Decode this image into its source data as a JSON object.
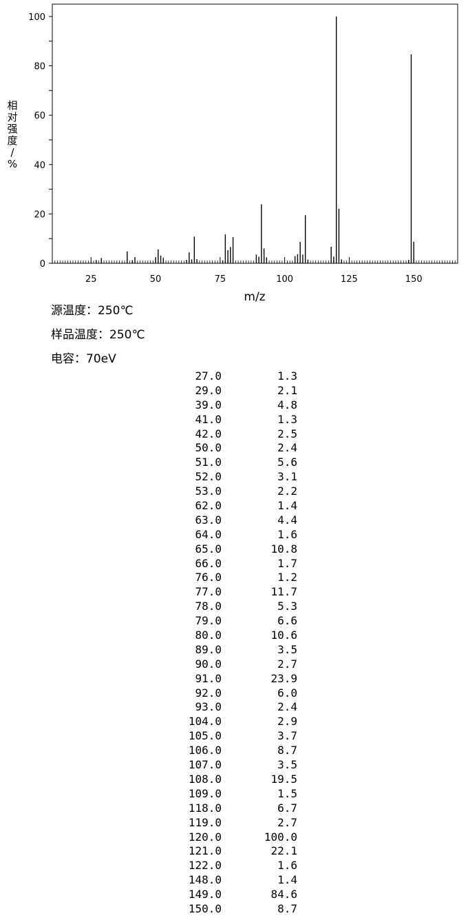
{
  "chart_data": {
    "type": "bar",
    "subtype": "mass-spectrum-stick",
    "title": "",
    "xlabel": "m/z",
    "ylabel": "相对强度/%",
    "xlim": [
      10,
      167
    ],
    "ylim": [
      0,
      105
    ],
    "x_ticks": [
      "25",
      "50",
      "75",
      "100",
      "125",
      "150"
    ],
    "y_ticks": [
      "0",
      "20",
      "40",
      "60",
      "80",
      "100"
    ],
    "grid": false,
    "legend": "none",
    "bar_color": "#000000",
    "series": [
      {
        "x": [
          27,
          29,
          39,
          41,
          42,
          50,
          51,
          52,
          53,
          62,
          63,
          64,
          65,
          66,
          76,
          77,
          78,
          79,
          80,
          89,
          90,
          91,
          92,
          93,
          104,
          105,
          106,
          107,
          108,
          109,
          118,
          119,
          120,
          121,
          122,
          148,
          149,
          150
        ],
        "values": [
          1.3,
          2.1,
          4.8,
          1.3,
          2.5,
          2.4,
          5.6,
          3.1,
          2.2,
          1.4,
          4.4,
          1.6,
          10.8,
          1.7,
          1.2,
          11.7,
          5.3,
          6.6,
          10.6,
          3.5,
          2.7,
          23.9,
          6.0,
          2.4,
          2.9,
          3.7,
          8.7,
          3.5,
          19.5,
          1.5,
          6.7,
          2.7,
          100.0,
          22.1,
          1.6,
          1.4,
          84.6,
          8.7
        ]
      }
    ]
  },
  "meta": {
    "source_temp_label": "源温度：",
    "source_temp_value": "250℃",
    "sample_temp_label": "样品温度：",
    "sample_temp_value": "250℃",
    "energy_label": "电容：",
    "energy_value": "70eV"
  },
  "table": {
    "rows": [
      {
        "mz": "27.0",
        "ab": "1.3"
      },
      {
        "mz": "29.0",
        "ab": "2.1"
      },
      {
        "mz": "39.0",
        "ab": "4.8"
      },
      {
        "mz": "41.0",
        "ab": "1.3"
      },
      {
        "mz": "42.0",
        "ab": "2.5"
      },
      {
        "mz": "50.0",
        "ab": "2.4"
      },
      {
        "mz": "51.0",
        "ab": "5.6"
      },
      {
        "mz": "52.0",
        "ab": "3.1"
      },
      {
        "mz": "53.0",
        "ab": "2.2"
      },
      {
        "mz": "62.0",
        "ab": "1.4"
      },
      {
        "mz": "63.0",
        "ab": "4.4"
      },
      {
        "mz": "64.0",
        "ab": "1.6"
      },
      {
        "mz": "65.0",
        "ab": "10.8"
      },
      {
        "mz": "66.0",
        "ab": "1.7"
      },
      {
        "mz": "76.0",
        "ab": "1.2"
      },
      {
        "mz": "77.0",
        "ab": "11.7"
      },
      {
        "mz": "78.0",
        "ab": "5.3"
      },
      {
        "mz": "79.0",
        "ab": "6.6"
      },
      {
        "mz": "80.0",
        "ab": "10.6"
      },
      {
        "mz": "89.0",
        "ab": "3.5"
      },
      {
        "mz": "90.0",
        "ab": "2.7"
      },
      {
        "mz": "91.0",
        "ab": "23.9"
      },
      {
        "mz": "92.0",
        "ab": "6.0"
      },
      {
        "mz": "93.0",
        "ab": "2.4"
      },
      {
        "mz": "104.0",
        "ab": "2.9"
      },
      {
        "mz": "105.0",
        "ab": "3.7"
      },
      {
        "mz": "106.0",
        "ab": "8.7"
      },
      {
        "mz": "107.0",
        "ab": "3.5"
      },
      {
        "mz": "108.0",
        "ab": "19.5"
      },
      {
        "mz": "109.0",
        "ab": "1.5"
      },
      {
        "mz": "118.0",
        "ab": "6.7"
      },
      {
        "mz": "119.0",
        "ab": "2.7"
      },
      {
        "mz": "120.0",
        "ab": "100.0"
      },
      {
        "mz": "121.0",
        "ab": "22.1"
      },
      {
        "mz": "122.0",
        "ab": "1.6"
      },
      {
        "mz": "148.0",
        "ab": "1.4"
      },
      {
        "mz": "149.0",
        "ab": "84.6"
      },
      {
        "mz": "150.0",
        "ab": "8.7"
      }
    ]
  }
}
